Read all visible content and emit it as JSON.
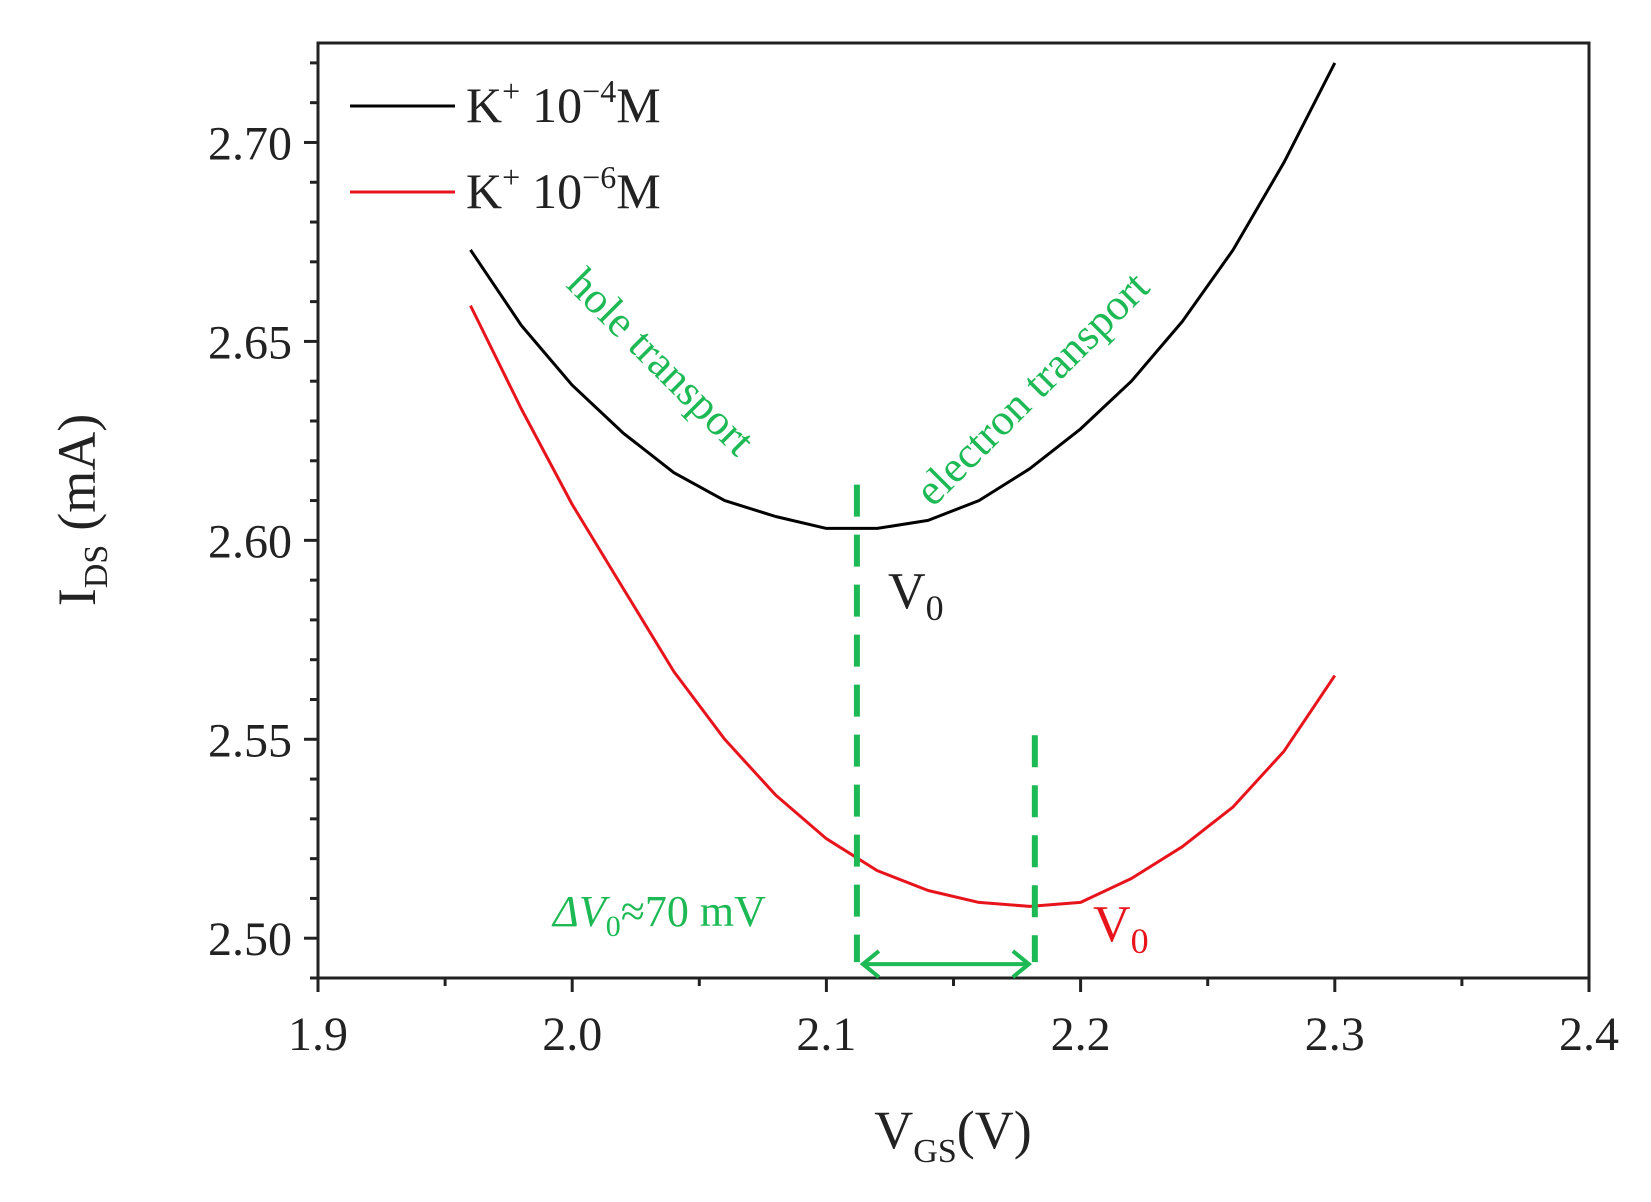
{
  "chart_data": {
    "type": "line",
    "title": "",
    "xlabel": {
      "main": "V",
      "sub": "GS",
      "unit": "(V)"
    },
    "ylabel": {
      "main": "I",
      "sub": "DS",
      "unit": "(mA)"
    },
    "xlim": [
      1.9,
      2.4
    ],
    "ylim": [
      2.49,
      2.725
    ],
    "xticks": [
      1.9,
      2.0,
      2.1,
      2.2,
      2.3,
      2.4
    ],
    "xtick_labels": [
      "1.9",
      "2.0",
      "2.1",
      "2.2",
      "2.3",
      "2.4"
    ],
    "yticks": [
      2.5,
      2.55,
      2.6,
      2.65,
      2.7
    ],
    "ytick_labels": [
      "2.50",
      "2.55",
      "2.60",
      "2.65",
      "2.70"
    ],
    "grid": false,
    "legend_position": "top-left",
    "series": [
      {
        "name": "K+ 10−4M",
        "legend": {
          "ion": "K",
          "charge": "+",
          "base": "10",
          "exp": "−4",
          "unit": "M"
        },
        "color": "#000000",
        "x": [
          1.96,
          1.98,
          2.0,
          2.02,
          2.04,
          2.06,
          2.08,
          2.1,
          2.12,
          2.14,
          2.16,
          2.18,
          2.2,
          2.22,
          2.24,
          2.26,
          2.28,
          2.3
        ],
        "y": [
          2.673,
          2.654,
          2.639,
          2.627,
          2.617,
          2.61,
          2.606,
          2.603,
          2.603,
          2.605,
          2.61,
          2.618,
          2.628,
          2.64,
          2.655,
          2.673,
          2.695,
          2.72
        ]
      },
      {
        "name": "K+ 10−6M",
        "legend": {
          "ion": "K",
          "charge": "+",
          "base": "10",
          "exp": "−6",
          "unit": "M"
        },
        "color": "#e8141c",
        "x": [
          1.96,
          1.98,
          2.0,
          2.02,
          2.04,
          2.06,
          2.08,
          2.1,
          2.12,
          2.14,
          2.16,
          2.18,
          2.2,
          2.22,
          2.24,
          2.26,
          2.28,
          2.3
        ],
        "y": [
          2.659,
          2.633,
          2.609,
          2.588,
          2.567,
          2.55,
          2.536,
          2.525,
          2.517,
          2.512,
          2.509,
          2.508,
          2.509,
          2.515,
          2.523,
          2.533,
          2.547,
          2.566
        ]
      }
    ],
    "annotations": {
      "hole_transport": "hole transport",
      "electron_transport": "electron transport",
      "v0_black": {
        "main": "V",
        "sub": "0"
      },
      "v0_red": {
        "main": "V",
        "sub": "0"
      },
      "delta_v0": {
        "prefix": "ΔV",
        "sub": "0",
        "suffix": "≈70 mV"
      },
      "v0_positions": [
        2.112,
        2.182
      ],
      "annotation_color": "#1db954"
    }
  }
}
